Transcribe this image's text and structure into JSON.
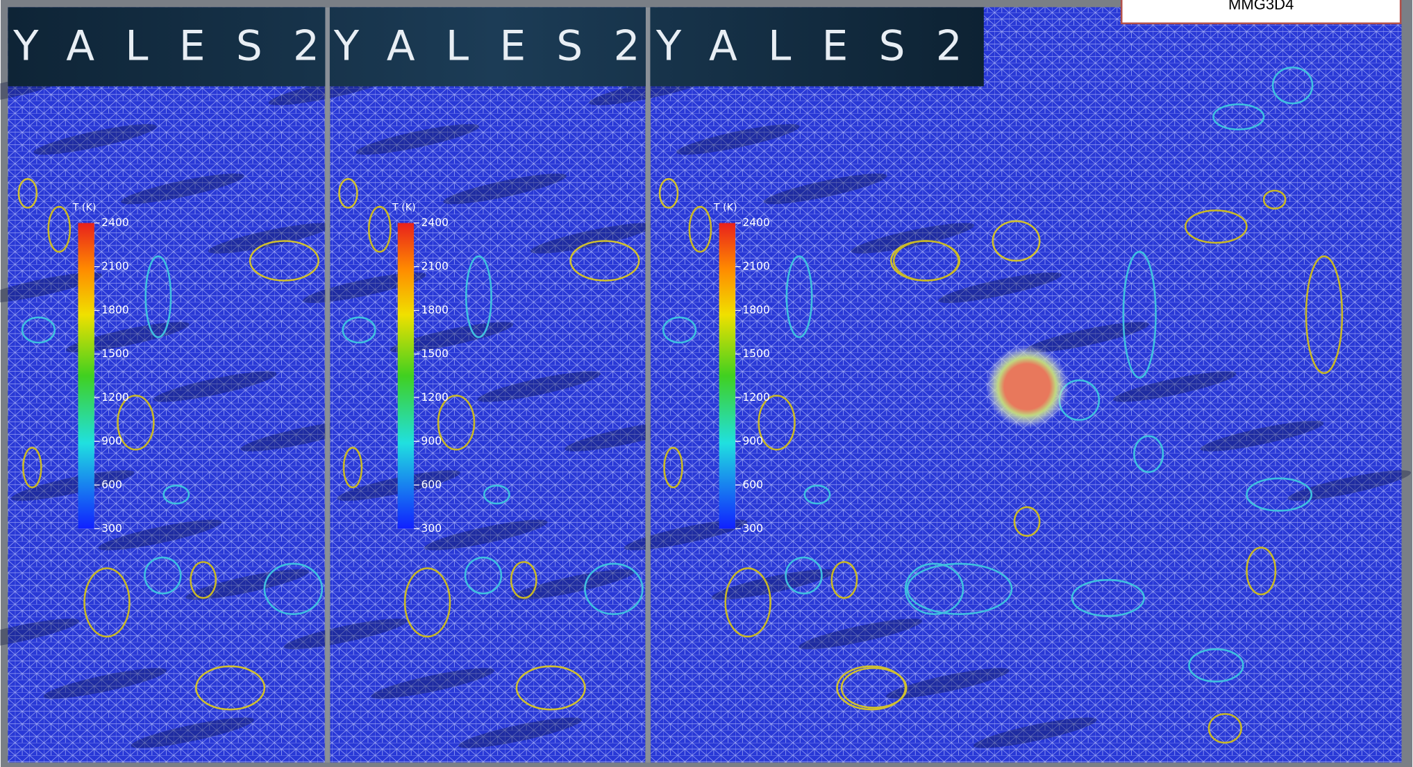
{
  "panels": [
    {
      "logo": "YALES2",
      "colorbar": {
        "title": "T (K)",
        "ticks": [
          2400,
          2100,
          1800,
          1500,
          1200,
          900,
          600,
          300
        ]
      }
    },
    {
      "logo": "YALES2",
      "colorbar": {
        "title": "T (K)",
        "ticks": [
          2400,
          2100,
          1800,
          1500,
          1200,
          900,
          600,
          300
        ]
      }
    },
    {
      "logo": "YALES2",
      "colorbar": {
        "title": "T (K)",
        "ticks": [
          2400,
          2100,
          1800,
          1500,
          1200,
          900,
          600,
          300
        ]
      }
    }
  ],
  "label": "MMG3D4"
}
